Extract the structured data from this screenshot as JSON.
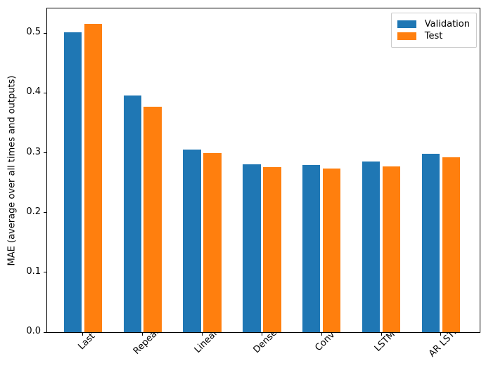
{
  "chart_data": {
    "type": "bar",
    "title": "",
    "xlabel": "",
    "ylabel": "MAE (average over all times and outputs)",
    "categories": [
      "Last",
      "Repeat",
      "Linear",
      "Dense",
      "Conv",
      "LSTM",
      "AR LSTM"
    ],
    "series": [
      {
        "name": "Validation",
        "color": "#1f77b4",
        "values": [
          0.501,
          0.396,
          0.306,
          0.281,
          0.28,
          0.286,
          0.298
        ]
      },
      {
        "name": "Test",
        "color": "#ff7f0e",
        "values": [
          0.516,
          0.377,
          0.299,
          0.276,
          0.274,
          0.277,
          0.292
        ]
      }
    ],
    "ylim": [
      0,
      0.5415
    ],
    "yticks": [
      0,
      0.1,
      0.2,
      0.3,
      0.4,
      0.5
    ],
    "ytick_labels": [
      "0.0",
      "0.1",
      "0.2",
      "0.3",
      "0.4",
      "0.5"
    ],
    "xtick_rotation": 45,
    "grid": false,
    "legend_position": "upper-right",
    "bar_width": 0.3,
    "bar_offsets": [
      -0.17,
      0.17
    ]
  },
  "colors": {
    "axis": "#000000",
    "legend_border": "#cccccc",
    "background": "#ffffff"
  }
}
